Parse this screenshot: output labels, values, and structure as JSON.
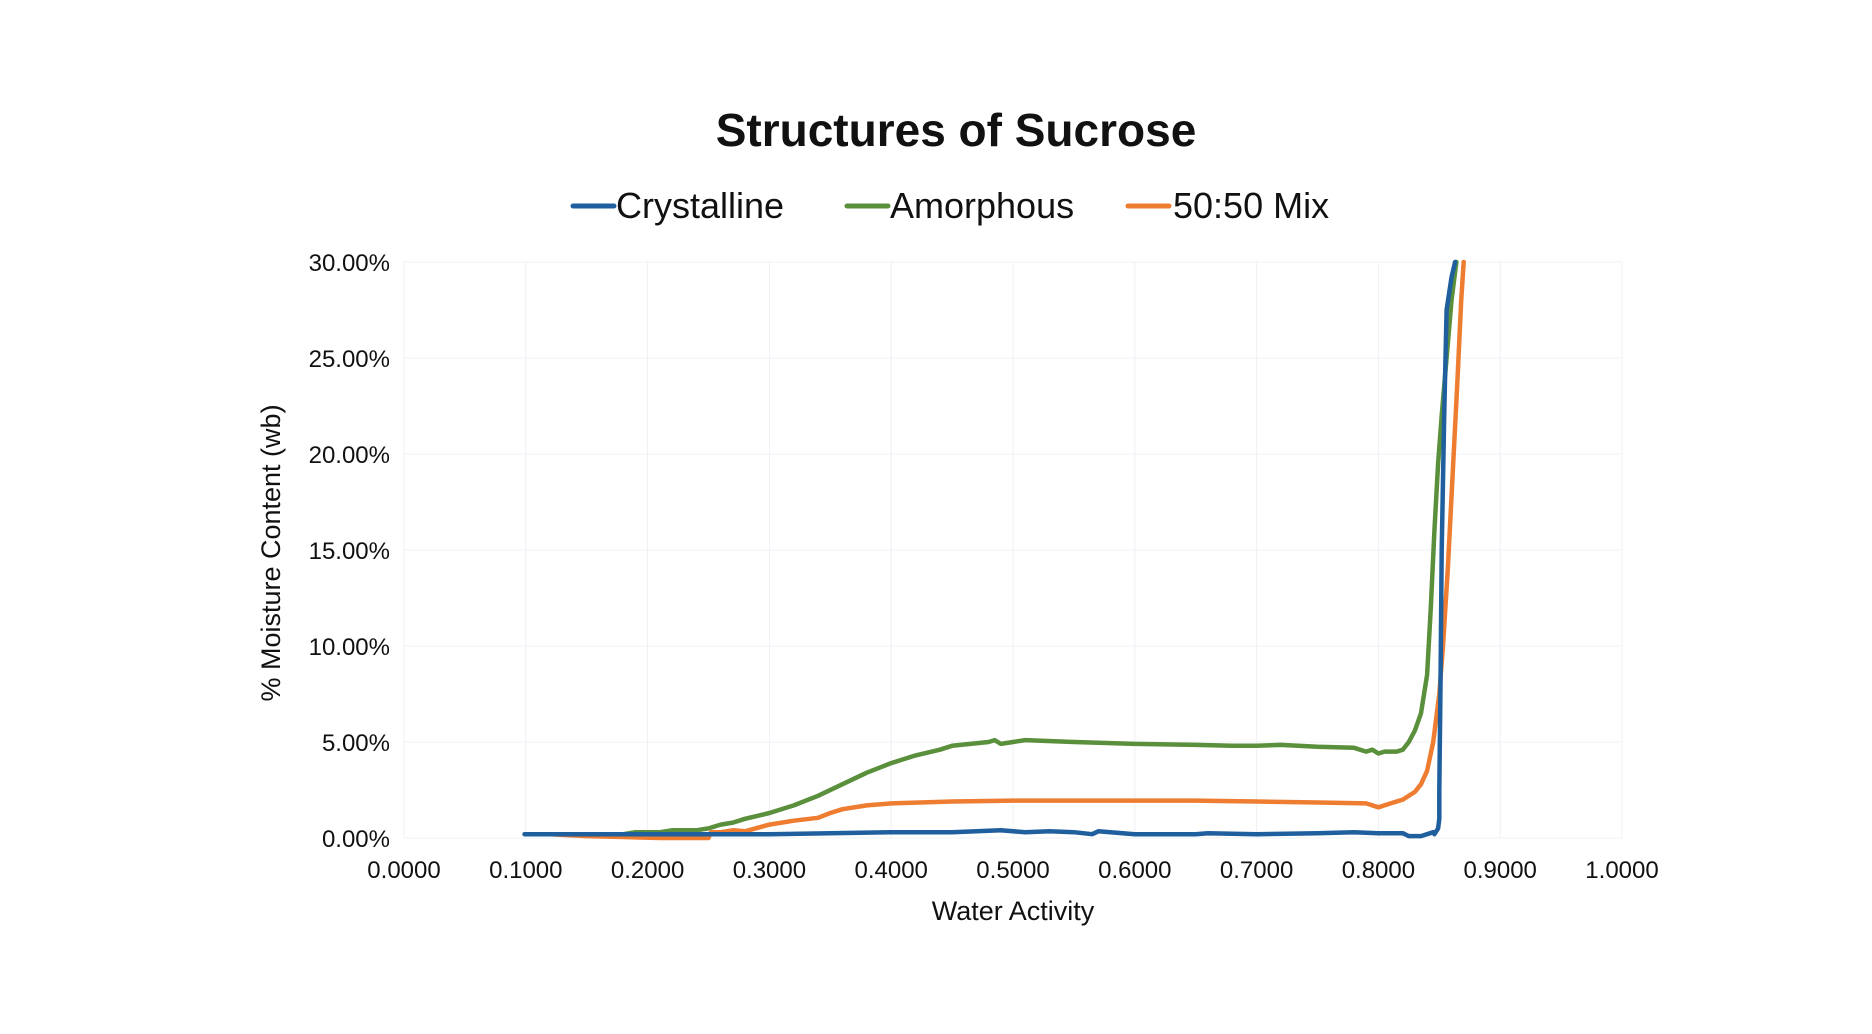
{
  "chart_data": {
    "type": "line",
    "title": "Structures of Sucrose",
    "xlabel": "Water Activity",
    "ylabel": "% Moisture Content (wb)",
    "xlim": [
      0.0,
      1.0
    ],
    "ylim": [
      0.0,
      30.0
    ],
    "x_ticks": [
      0.0,
      0.1,
      0.2,
      0.3,
      0.4,
      0.5,
      0.6,
      0.7,
      0.8,
      0.9,
      1.0
    ],
    "x_tick_labels": [
      "0.0000",
      "0.1000",
      "0.2000",
      "0.3000",
      "0.4000",
      "0.5000",
      "0.6000",
      "0.7000",
      "0.8000",
      "0.9000",
      "1.0000"
    ],
    "y_ticks": [
      0,
      5,
      10,
      15,
      20,
      25,
      30
    ],
    "y_tick_labels": [
      "0.00%",
      "5.00%",
      "10.00%",
      "15.00%",
      "20.00%",
      "25.00%",
      "30.00%"
    ],
    "grid": true,
    "legend_position": "top-center",
    "series": [
      {
        "name": "Crystalline",
        "color": "#1f5f9e",
        "points": [
          [
            0.099,
            0.2
          ],
          [
            0.15,
            0.2
          ],
          [
            0.2,
            0.2
          ],
          [
            0.25,
            0.2
          ],
          [
            0.3,
            0.2
          ],
          [
            0.35,
            0.25
          ],
          [
            0.4,
            0.3
          ],
          [
            0.45,
            0.3
          ],
          [
            0.49,
            0.4
          ],
          [
            0.51,
            0.3
          ],
          [
            0.53,
            0.35
          ],
          [
            0.55,
            0.3
          ],
          [
            0.565,
            0.2
          ],
          [
            0.57,
            0.35
          ],
          [
            0.6,
            0.2
          ],
          [
            0.65,
            0.2
          ],
          [
            0.66,
            0.25
          ],
          [
            0.7,
            0.2
          ],
          [
            0.75,
            0.25
          ],
          [
            0.78,
            0.3
          ],
          [
            0.8,
            0.25
          ],
          [
            0.82,
            0.25
          ],
          [
            0.825,
            0.1
          ],
          [
            0.835,
            0.1
          ],
          [
            0.84,
            0.2
          ],
          [
            0.845,
            0.3
          ],
          [
            0.846,
            0.2
          ],
          [
            0.849,
            0.5
          ],
          [
            0.85,
            1.0
          ],
          [
            0.85,
            2.5
          ],
          [
            0.851,
            8.0
          ],
          [
            0.852,
            15.0
          ],
          [
            0.854,
            22.0
          ],
          [
            0.856,
            27.5
          ],
          [
            0.86,
            29.2
          ],
          [
            0.863,
            30.0
          ]
        ]
      },
      {
        "name": "Amorphous",
        "color": "#5a8f3c",
        "points": [
          [
            0.099,
            0.2
          ],
          [
            0.15,
            0.2
          ],
          [
            0.18,
            0.2
          ],
          [
            0.19,
            0.3
          ],
          [
            0.21,
            0.3
          ],
          [
            0.22,
            0.4
          ],
          [
            0.24,
            0.4
          ],
          [
            0.25,
            0.5
          ],
          [
            0.26,
            0.7
          ],
          [
            0.27,
            0.8
          ],
          [
            0.28,
            1.0
          ],
          [
            0.3,
            1.3
          ],
          [
            0.32,
            1.7
          ],
          [
            0.34,
            2.2
          ],
          [
            0.36,
            2.8
          ],
          [
            0.38,
            3.4
          ],
          [
            0.4,
            3.9
          ],
          [
            0.42,
            4.3
          ],
          [
            0.44,
            4.6
          ],
          [
            0.45,
            4.8
          ],
          [
            0.48,
            5.0
          ],
          [
            0.485,
            5.1
          ],
          [
            0.49,
            4.9
          ],
          [
            0.5,
            5.0
          ],
          [
            0.51,
            5.1
          ],
          [
            0.55,
            5.0
          ],
          [
            0.6,
            4.9
          ],
          [
            0.65,
            4.85
          ],
          [
            0.68,
            4.8
          ],
          [
            0.7,
            4.8
          ],
          [
            0.72,
            4.85
          ],
          [
            0.75,
            4.75
          ],
          [
            0.78,
            4.7
          ],
          [
            0.79,
            4.5
          ],
          [
            0.795,
            4.6
          ],
          [
            0.8,
            4.4
          ],
          [
            0.805,
            4.5
          ],
          [
            0.815,
            4.5
          ],
          [
            0.82,
            4.6
          ],
          [
            0.825,
            5.0
          ],
          [
            0.83,
            5.6
          ],
          [
            0.835,
            6.5
          ],
          [
            0.84,
            8.5
          ],
          [
            0.843,
            12.0
          ],
          [
            0.846,
            16.0
          ],
          [
            0.849,
            19.5
          ],
          [
            0.852,
            22.0
          ],
          [
            0.856,
            25.0
          ],
          [
            0.86,
            28.0
          ],
          [
            0.864,
            30.0
          ]
        ]
      },
      {
        "name": "50:50 Mix",
        "color": "#ee7d31",
        "points": [
          [
            0.099,
            0.2
          ],
          [
            0.12,
            0.2
          ],
          [
            0.15,
            0.1
          ],
          [
            0.18,
            0.05
          ],
          [
            0.21,
            0.0
          ],
          [
            0.25,
            0.0
          ],
          [
            0.252,
            0.3
          ],
          [
            0.26,
            0.3
          ],
          [
            0.27,
            0.4
          ],
          [
            0.28,
            0.35
          ],
          [
            0.3,
            0.7
          ],
          [
            0.32,
            0.9
          ],
          [
            0.34,
            1.05
          ],
          [
            0.35,
            1.3
          ],
          [
            0.36,
            1.5
          ],
          [
            0.38,
            1.7
          ],
          [
            0.4,
            1.8
          ],
          [
            0.45,
            1.9
          ],
          [
            0.5,
            1.95
          ],
          [
            0.55,
            1.95
          ],
          [
            0.6,
            1.95
          ],
          [
            0.65,
            1.95
          ],
          [
            0.7,
            1.9
          ],
          [
            0.75,
            1.85
          ],
          [
            0.79,
            1.8
          ],
          [
            0.8,
            1.6
          ],
          [
            0.81,
            1.8
          ],
          [
            0.82,
            2.0
          ],
          [
            0.83,
            2.4
          ],
          [
            0.835,
            2.8
          ],
          [
            0.84,
            3.5
          ],
          [
            0.845,
            5.0
          ],
          [
            0.85,
            7.5
          ],
          [
            0.853,
            10.0
          ],
          [
            0.857,
            14.0
          ],
          [
            0.861,
            19.0
          ],
          [
            0.865,
            24.0
          ],
          [
            0.868,
            28.0
          ],
          [
            0.87,
            30.0
          ]
        ]
      }
    ]
  }
}
